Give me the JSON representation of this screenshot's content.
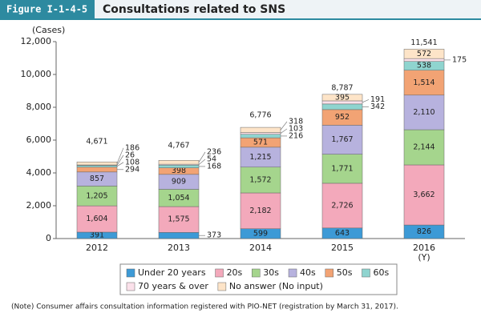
{
  "header": {
    "figure": "Figure I-1-4-5"
  },
  "chart_data": {
    "type": "stacked_bar",
    "title": "Consultations related to SNS",
    "y_label": "(Cases)",
    "x_label": "(Y)",
    "categories": [
      "2012",
      "2013",
      "2014",
      "2015",
      "2016"
    ],
    "ylim": [
      0,
      12000
    ],
    "yticks": [
      0,
      {
        "value": 2000,
        "label": "2,000"
      },
      {
        "value": 4000,
        "label": "4,000"
      },
      {
        "value": 6000,
        "label": "6,000"
      },
      {
        "value": 8000,
        "label": "8,000"
      },
      {
        "value": 10000,
        "label": "10,000"
      },
      {
        "value": 12000,
        "label": "12,000"
      }
    ],
    "series": [
      {
        "name": "Under 20 years",
        "color": "#3d9ad6",
        "values": [
          391,
          373,
          599,
          643,
          826
        ],
        "value_labels": [
          "391",
          "373",
          "599",
          "643",
          "826"
        ]
      },
      {
        "name": "20s",
        "color": "#f3a9bb",
        "values": [
          1604,
          1575,
          2182,
          2726,
          3662
        ],
        "value_labels": [
          "1,604",
          "1,575",
          "2,182",
          "2,726",
          "3,662"
        ]
      },
      {
        "name": "30s",
        "color": "#a5d58d",
        "values": [
          1205,
          1054,
          1572,
          1771,
          2144
        ],
        "value_labels": [
          "1,205",
          "1,054",
          "1,572",
          "1,771",
          "2,144"
        ]
      },
      {
        "name": "40s",
        "color": "#b7b2de",
        "values": [
          857,
          909,
          1215,
          1767,
          2110
        ],
        "value_labels": [
          "857",
          "909",
          "1,215",
          "1,767",
          "2,110"
        ]
      },
      {
        "name": "50s",
        "color": "#f2a374",
        "values": [
          294,
          398,
          571,
          952,
          1514
        ],
        "value_labels": [
          "294",
          "398",
          "571",
          "952",
          "1,514"
        ]
      },
      {
        "name": "60s",
        "color": "#8fd4cf",
        "values": [
          108,
          168,
          216,
          342,
          538
        ],
        "value_labels": [
          "108",
          "168",
          "216",
          "342",
          "538"
        ]
      },
      {
        "name": "70 years & over",
        "color": "#fbe1ea",
        "values": [
          26,
          54,
          103,
          191,
          175
        ],
        "value_labels": [
          "26",
          "54",
          "103",
          "191",
          "175"
        ]
      },
      {
        "name": "No answer (No input)",
        "color": "#fde4c8",
        "values": [
          186,
          236,
          318,
          395,
          572
        ],
        "value_labels": [
          "186",
          "236",
          "318",
          "395",
          "572"
        ]
      }
    ],
    "totals": {
      "values": [
        4671,
        4767,
        6776,
        8787,
        11541
      ],
      "value_labels": [
        "4,671",
        "4,767",
        "6,776",
        "8,787",
        "11,541"
      ]
    },
    "grid": false,
    "note": "(Note)  Consumer affairs consultation information registered with PIO-NET (registration by March 31, 2017)."
  }
}
